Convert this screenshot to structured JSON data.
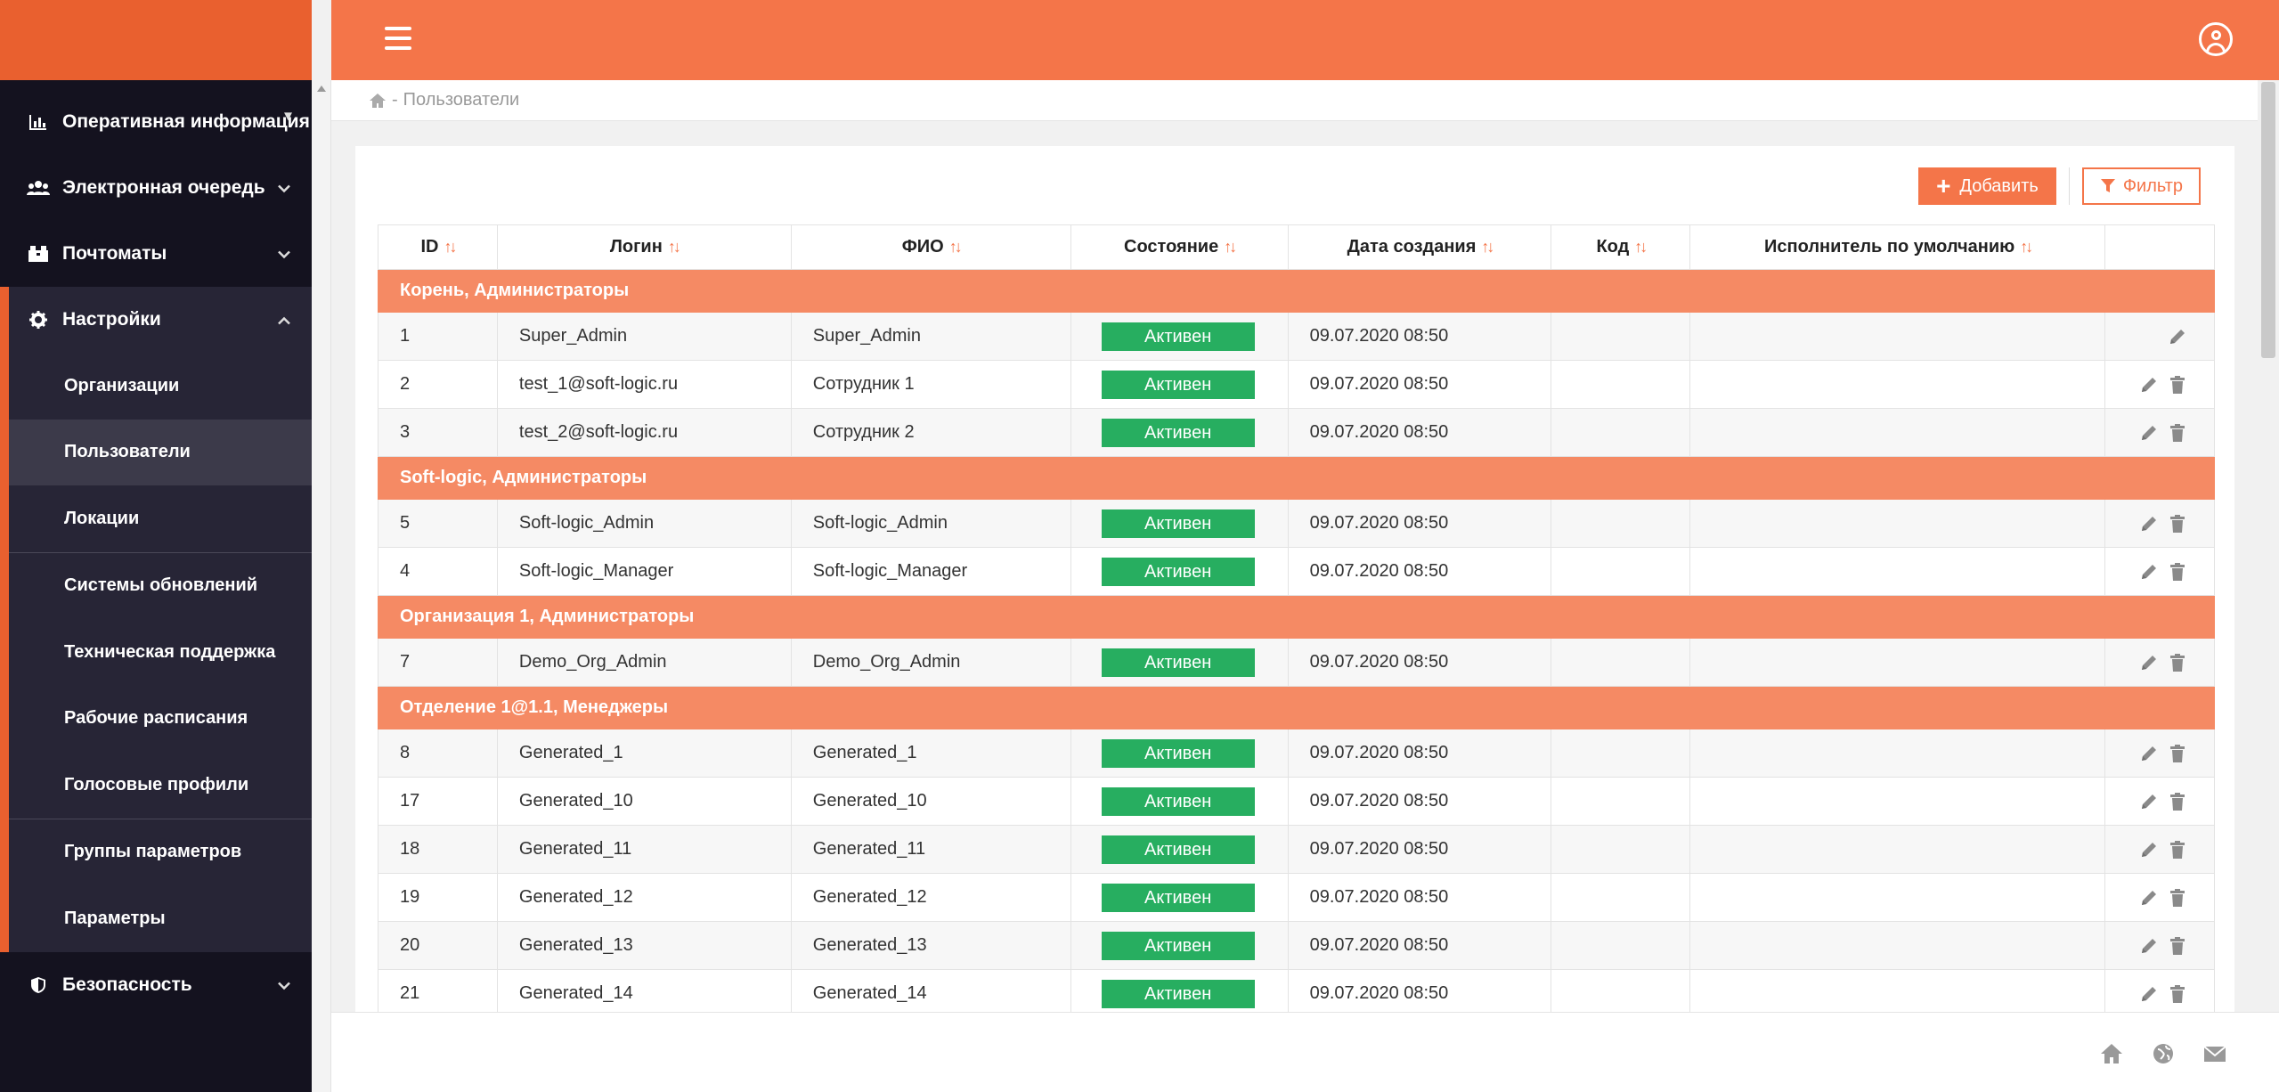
{
  "sidebar": {
    "items": [
      {
        "label": "Оперативная информация",
        "icon": "chart-icon",
        "chevron": "▾"
      },
      {
        "label": "Электронная очередь",
        "icon": "users-icon",
        "chevron": "⌄"
      },
      {
        "label": "Почтоматы",
        "icon": "box-icon",
        "chevron": "⌄"
      },
      {
        "label": "Настройки",
        "icon": "gear-icon",
        "chevron": "⌃"
      }
    ],
    "submenu": [
      {
        "label": "Организации"
      },
      {
        "label": "Пользователи"
      },
      {
        "label": "Локации"
      },
      {
        "label": "Системы обновлений"
      },
      {
        "label": "Техническая поддержка"
      },
      {
        "label": "Рабочие расписания"
      },
      {
        "label": "Голосовые профили"
      },
      {
        "label": "Группы параметров"
      },
      {
        "label": "Параметры"
      }
    ],
    "security": {
      "label": "Безопасность",
      "icon": "shield-icon",
      "chevron": "⌄"
    }
  },
  "breadcrumb": {
    "separator": "-",
    "current": "Пользователи"
  },
  "toolbar": {
    "add_label": "Добавить",
    "filter_label": "Фильтр"
  },
  "table": {
    "sort_glyph": "↑↓",
    "columns": [
      "ID",
      "Логин",
      "ФИО",
      "Состояние",
      "Дата создания",
      "Код",
      "Исполнитель по умолчанию"
    ],
    "groups": [
      {
        "title": "Корень, Администраторы",
        "rows": [
          {
            "id": "1",
            "login": "Super_Admin",
            "fio": "Super_Admin",
            "status": "Активен",
            "created": "09.07.2020 08:50",
            "code": "",
            "executor": "",
            "deletable": false
          },
          {
            "id": "2",
            "login": "test_1@soft-logic.ru",
            "fio": "Сотрудник 1",
            "status": "Активен",
            "created": "09.07.2020 08:50",
            "code": "",
            "executor": "",
            "deletable": true
          },
          {
            "id": "3",
            "login": "test_2@soft-logic.ru",
            "fio": "Сотрудник 2",
            "status": "Активен",
            "created": "09.07.2020 08:50",
            "code": "",
            "executor": "",
            "deletable": true
          }
        ]
      },
      {
        "title": "Soft-logic, Администраторы",
        "rows": [
          {
            "id": "5",
            "login": "Soft-logic_Admin",
            "fio": "Soft-logic_Admin",
            "status": "Активен",
            "created": "09.07.2020 08:50",
            "code": "",
            "executor": "",
            "deletable": true
          },
          {
            "id": "4",
            "login": "Soft-logic_Manager",
            "fio": "Soft-logic_Manager",
            "status": "Активен",
            "created": "09.07.2020 08:50",
            "code": "",
            "executor": "",
            "deletable": true
          }
        ]
      },
      {
        "title": "Организация 1, Администраторы",
        "rows": [
          {
            "id": "7",
            "login": "Demo_Org_Admin",
            "fio": "Demo_Org_Admin",
            "status": "Активен",
            "created": "09.07.2020 08:50",
            "code": "",
            "executor": "",
            "deletable": true
          }
        ]
      },
      {
        "title": "Отделение 1@1.1, Менеджеры",
        "rows": [
          {
            "id": "8",
            "login": "Generated_1",
            "fio": "Generated_1",
            "status": "Активен",
            "created": "09.07.2020 08:50",
            "code": "",
            "executor": "",
            "deletable": true
          },
          {
            "id": "17",
            "login": "Generated_10",
            "fio": "Generated_10",
            "status": "Активен",
            "created": "09.07.2020 08:50",
            "code": "",
            "executor": "",
            "deletable": true
          },
          {
            "id": "18",
            "login": "Generated_11",
            "fio": "Generated_11",
            "status": "Активен",
            "created": "09.07.2020 08:50",
            "code": "",
            "executor": "",
            "deletable": true
          },
          {
            "id": "19",
            "login": "Generated_12",
            "fio": "Generated_12",
            "status": "Активен",
            "created": "09.07.2020 08:50",
            "code": "",
            "executor": "",
            "deletable": true
          },
          {
            "id": "20",
            "login": "Generated_13",
            "fio": "Generated_13",
            "status": "Активен",
            "created": "09.07.2020 08:50",
            "code": "",
            "executor": "",
            "deletable": true
          },
          {
            "id": "21",
            "login": "Generated_14",
            "fio": "Generated_14",
            "status": "Активен",
            "created": "09.07.2020 08:50",
            "code": "",
            "executor": "",
            "deletable": true
          }
        ]
      }
    ]
  },
  "footer": {
    "icons": [
      "home-icon",
      "globe-icon",
      "mail-icon"
    ]
  },
  "colors": {
    "accent": "#f47549",
    "brand_dark": "#e9602f",
    "group_row": "#f58a64",
    "status_active": "#27ae60",
    "sidebar_bg": "#14121f"
  }
}
